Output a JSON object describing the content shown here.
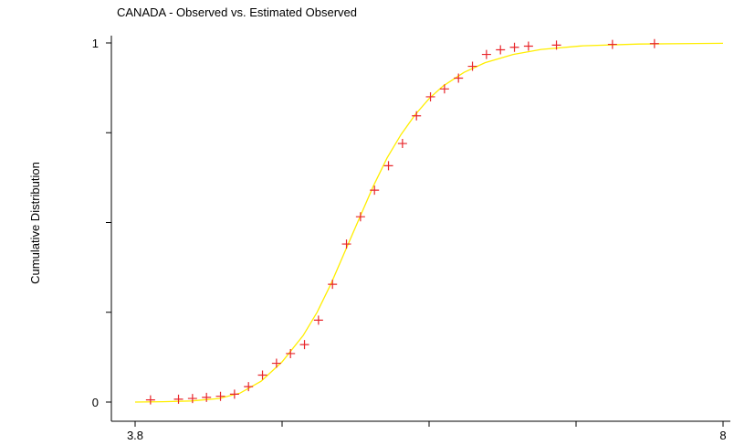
{
  "chart_data": {
    "type": "scatter",
    "title": "CANADA - Observed vs. Estimated Observed",
    "xlabel": "",
    "ylabel": "Cumulative Distribution",
    "xlim": [
      3.8,
      8
    ],
    "ylim": [
      0,
      1
    ],
    "x_ticks": [
      3.8,
      4.85,
      5.9,
      6.95,
      8
    ],
    "x_tick_labels": [
      "3.8",
      "",
      "",
      "",
      "8"
    ],
    "y_ticks": [
      0,
      0.25,
      0.5,
      0.75,
      1
    ],
    "y_tick_labels": [
      "0",
      "",
      "",
      "",
      "1"
    ],
    "grid": false,
    "series": [
      {
        "kind": "points",
        "marker": "plus",
        "color": "#e8262b",
        "points": [
          [
            3.91,
            0.006
          ],
          [
            4.11,
            0.008
          ],
          [
            4.21,
            0.01
          ],
          [
            4.31,
            0.013
          ],
          [
            4.41,
            0.016
          ],
          [
            4.51,
            0.022
          ],
          [
            4.61,
            0.043
          ],
          [
            4.71,
            0.075
          ],
          [
            4.81,
            0.108
          ],
          [
            4.91,
            0.135
          ],
          [
            5.01,
            0.16
          ],
          [
            5.11,
            0.228
          ],
          [
            5.21,
            0.328
          ],
          [
            5.31,
            0.44
          ],
          [
            5.41,
            0.516
          ],
          [
            5.51,
            0.59
          ],
          [
            5.61,
            0.658
          ],
          [
            5.71,
            0.72
          ],
          [
            5.81,
            0.797
          ],
          [
            5.91,
            0.85
          ],
          [
            6.01,
            0.872
          ],
          [
            6.11,
            0.902
          ],
          [
            6.21,
            0.935
          ],
          [
            6.31,
            0.968
          ],
          [
            6.41,
            0.981
          ],
          [
            6.51,
            0.988
          ],
          [
            6.61,
            0.991
          ],
          [
            6.81,
            0.994
          ],
          [
            7.21,
            0.996
          ],
          [
            7.51,
            0.998
          ]
        ]
      },
      {
        "kind": "line",
        "color": "#ffee00",
        "points": [
          [
            3.8,
            0.0
          ],
          [
            4.0,
            0.001
          ],
          [
            4.2,
            0.003
          ],
          [
            4.4,
            0.01
          ],
          [
            4.55,
            0.025
          ],
          [
            4.7,
            0.058
          ],
          [
            4.85,
            0.112
          ],
          [
            5.0,
            0.185
          ],
          [
            5.1,
            0.25
          ],
          [
            5.2,
            0.33
          ],
          [
            5.3,
            0.42
          ],
          [
            5.4,
            0.51
          ],
          [
            5.5,
            0.6
          ],
          [
            5.6,
            0.68
          ],
          [
            5.7,
            0.745
          ],
          [
            5.8,
            0.8
          ],
          [
            5.9,
            0.845
          ],
          [
            6.0,
            0.88
          ],
          [
            6.15,
            0.918
          ],
          [
            6.3,
            0.945
          ],
          [
            6.5,
            0.968
          ],
          [
            6.7,
            0.982
          ],
          [
            7.0,
            0.992
          ],
          [
            7.4,
            0.997
          ],
          [
            8.0,
            0.999
          ]
        ]
      }
    ]
  }
}
